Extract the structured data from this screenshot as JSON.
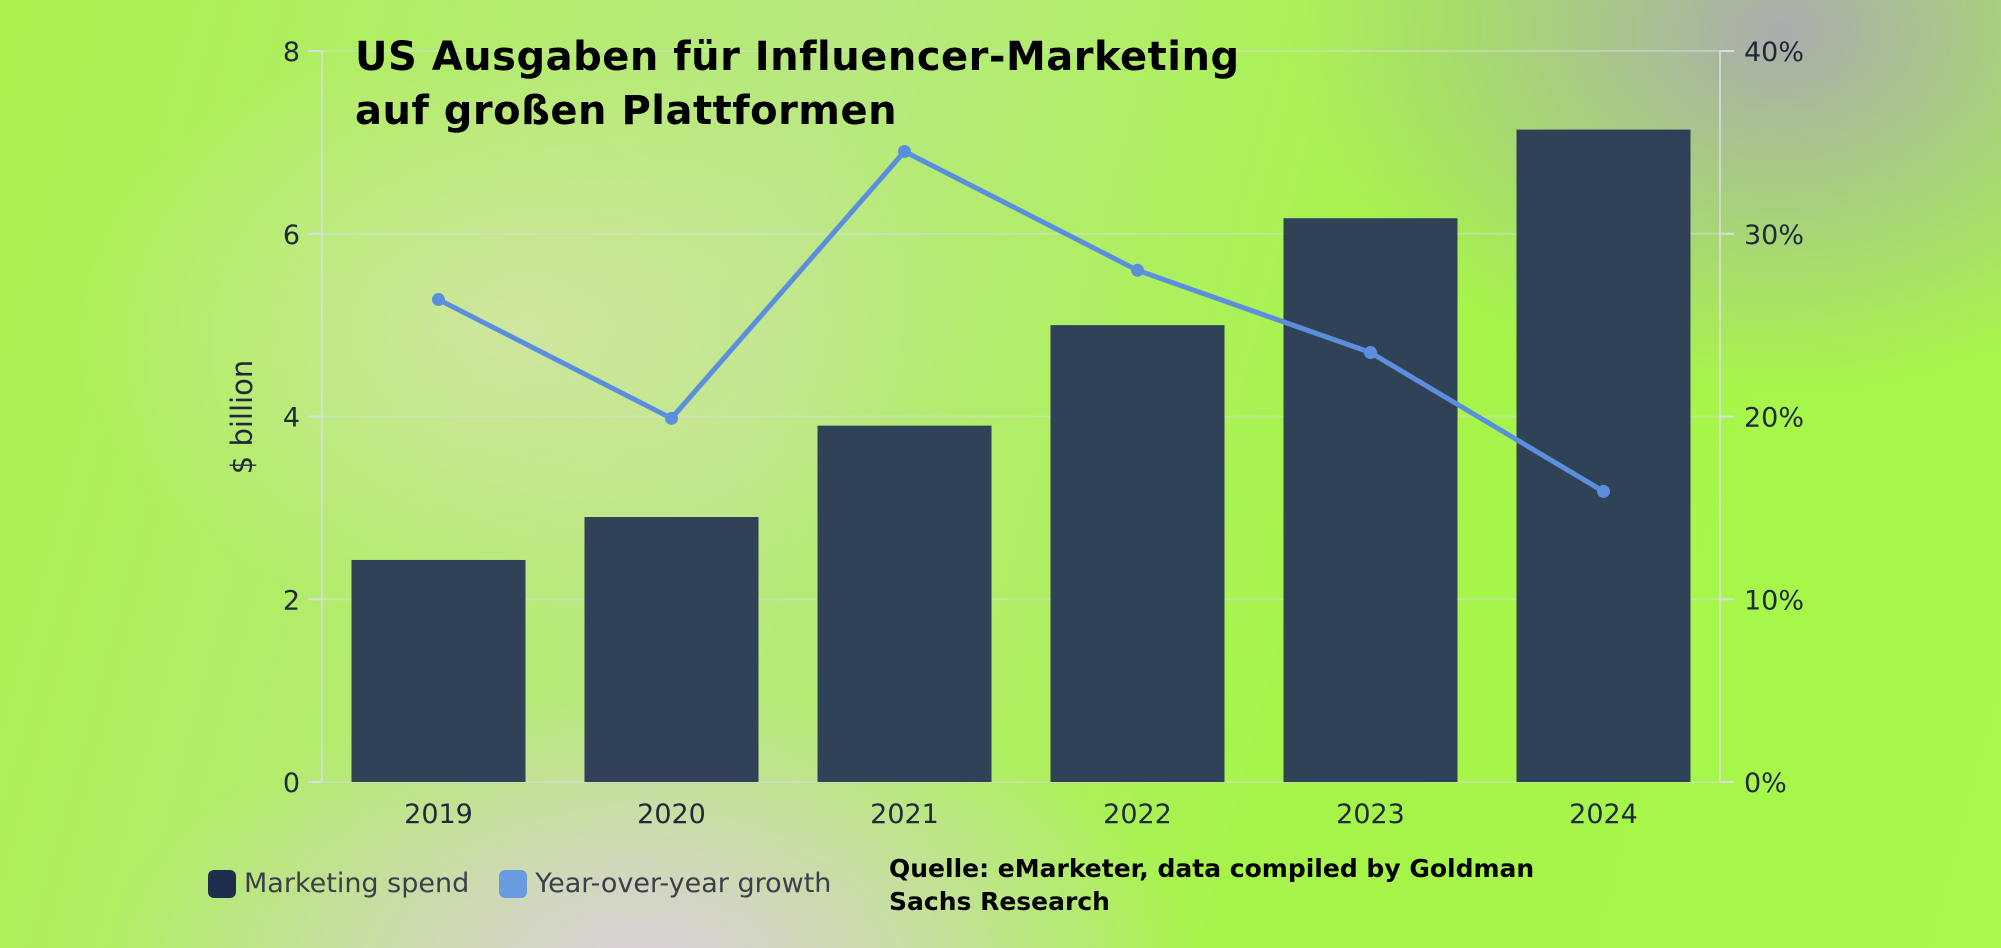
{
  "title_line1": "US Ausgaben für Influencer-Marketing",
  "title_line2": "auf großen Plattformen",
  "source_line1": "Quelle: eMarketer, data compiled by Goldman",
  "source_line2": "Sachs Research",
  "colors": {
    "bars": "#2b3a56",
    "line": "#5b8fdd",
    "gridline": "#d9dde3"
  },
  "chart_data": {
    "type": "bar",
    "categories": [
      "2019",
      "2020",
      "2021",
      "2022",
      "2023",
      "2024"
    ],
    "series": [
      {
        "name": "Marketing spend",
        "type": "bar",
        "axis": "left",
        "values": [
          2.43,
          2.9,
          3.9,
          5.0,
          6.17,
          7.14
        ]
      },
      {
        "name": "Year-over-year growth",
        "type": "line",
        "axis": "right",
        "values": [
          26.4,
          19.9,
          34.5,
          28.0,
          23.5,
          15.9
        ]
      }
    ],
    "ylabel": "$ billion",
    "ylim": [
      0,
      8
    ],
    "yticks": [
      "0",
      "2",
      "4",
      "6",
      "8"
    ],
    "y2lim": [
      0,
      40
    ],
    "y2ticks": [
      "0%",
      "10%",
      "20%",
      "30%",
      "40%"
    ],
    "legend_position": "bottom-left",
    "grid": true
  }
}
